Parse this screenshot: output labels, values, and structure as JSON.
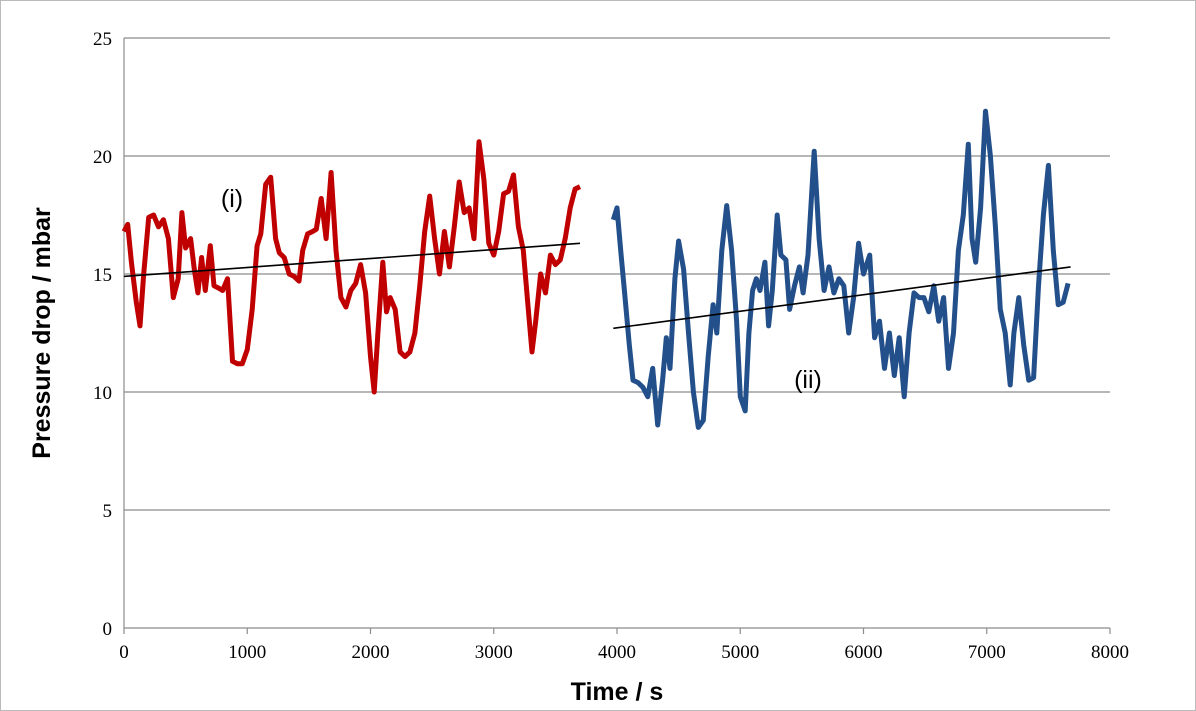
{
  "chart_data": {
    "type": "line",
    "xlabel": "Time / s",
    "ylabel": "Pressure drop / mbar",
    "xlim": [
      0,
      8000
    ],
    "xticks": [
      0,
      1000,
      2000,
      3000,
      4000,
      5000,
      6000,
      7000,
      8000
    ],
    "ylim": [
      0,
      25
    ],
    "yticks": [
      0,
      5,
      10,
      15,
      20,
      25
    ],
    "grid": true,
    "annotations": [
      "(i)",
      "(ii)"
    ],
    "series": [
      {
        "color": "#c00000",
        "x": [
          0,
          30,
          60,
          100,
          130,
          160,
          200,
          240,
          280,
          320,
          360,
          400,
          440,
          470,
          500,
          540,
          570,
          600,
          630,
          660,
          700,
          730,
          770,
          800,
          840,
          880,
          920,
          960,
          1000,
          1040,
          1080,
          1110,
          1150,
          1190,
          1230,
          1260,
          1300,
          1340,
          1380,
          1420,
          1450,
          1490,
          1530,
          1560,
          1600,
          1640,
          1680,
          1720,
          1760,
          1800,
          1840,
          1880,
          1920,
          1960,
          2000,
          2030,
          2060,
          2100,
          2130,
          2160,
          2200,
          2240,
          2280,
          2320,
          2360,
          2400,
          2440,
          2480,
          2520,
          2560,
          2600,
          2640,
          2680,
          2720,
          2760,
          2800,
          2840,
          2880,
          2920,
          2960,
          3000,
          3040,
          3080,
          3120,
          3160,
          3200,
          3240,
          3280,
          3310,
          3340,
          3380,
          3420,
          3460,
          3500,
          3540,
          3580,
          3620,
          3660,
          3700
        ],
        "values": [
          16.8,
          17.1,
          15.5,
          13.8,
          12.8,
          15,
          17.4,
          17.5,
          17.0,
          17.3,
          16.5,
          14.0,
          14.8,
          17.6,
          16.1,
          16.5,
          15.2,
          14.2,
          15.7,
          14.3,
          16.2,
          14.5,
          14.4,
          14.3,
          14.8,
          11.3,
          11.2,
          11.2,
          11.8,
          13.5,
          16.2,
          16.7,
          18.8,
          19.1,
          16.5,
          15.9,
          15.7,
          15.0,
          14.9,
          14.7,
          16.0,
          16.7,
          16.8,
          16.9,
          18.2,
          16.5,
          19.3,
          16.0,
          14.0,
          13.6,
          14.3,
          14.6,
          15.4,
          14.2,
          11.5,
          10.0,
          12.5,
          15.5,
          13.4,
          14.0,
          13.5,
          11.7,
          11.5,
          11.7,
          12.5,
          14.5,
          16.8,
          18.3,
          16.5,
          15.0,
          16.8,
          15.3,
          17.0,
          18.9,
          17.6,
          17.8,
          16.5,
          20.6,
          19.0,
          16.3,
          15.8,
          16.8,
          18.4,
          18.5,
          19.2,
          17.0,
          16.0,
          13.5,
          11.7,
          13.0,
          15.0,
          14.2,
          15.8,
          15.4,
          15.6,
          16.5,
          17.8,
          18.6,
          18.7
        ],
        "trend_x": [
          0,
          3700
        ],
        "trend_values": [
          14.9,
          16.3
        ]
      },
      {
        "color": "#23508a",
        "x": [
          3970,
          4000,
          4030,
          4060,
          4100,
          4130,
          4170,
          4210,
          4250,
          4290,
          4330,
          4370,
          4400,
          4430,
          4470,
          4500,
          4540,
          4580,
          4620,
          4660,
          4700,
          4740,
          4780,
          4810,
          4850,
          4890,
          4930,
          4970,
          5000,
          5040,
          5070,
          5100,
          5130,
          5160,
          5200,
          5230,
          5260,
          5300,
          5330,
          5370,
          5400,
          5440,
          5480,
          5510,
          5550,
          5600,
          5640,
          5680,
          5720,
          5760,
          5800,
          5840,
          5880,
          5920,
          5960,
          6000,
          6050,
          6090,
          6130,
          6170,
          6210,
          6250,
          6290,
          6330,
          6370,
          6410,
          6450,
          6490,
          6530,
          6570,
          6610,
          6650,
          6690,
          6730,
          6770,
          6810,
          6850,
          6880,
          6910,
          6950,
          6990,
          7030,
          7070,
          7110,
          7150,
          7190,
          7220,
          7260,
          7300,
          7340,
          7380,
          7420,
          7460,
          7500,
          7540,
          7580,
          7620,
          7660
        ],
        "values": [
          17.3,
          17.8,
          16.0,
          14.3,
          12.0,
          10.5,
          10.4,
          10.2,
          9.8,
          11.0,
          8.6,
          10.5,
          12.3,
          11.0,
          14.8,
          16.4,
          15.2,
          12.5,
          10.0,
          8.5,
          8.8,
          11.5,
          13.7,
          12.5,
          16.0,
          17.9,
          16.0,
          13.0,
          9.8,
          9.2,
          12.5,
          14.3,
          14.8,
          14.3,
          15.5,
          12.8,
          14.3,
          17.5,
          15.8,
          15.6,
          13.5,
          14.5,
          15.3,
          14.2,
          15.8,
          20.2,
          16.5,
          14.3,
          15.3,
          14.2,
          14.8,
          14.5,
          12.5,
          14.0,
          16.3,
          15.0,
          15.8,
          12.3,
          13.0,
          11.0,
          12.5,
          10.7,
          12.3,
          9.8,
          12.5,
          14.2,
          14.0,
          14.0,
          13.4,
          14.5,
          13.0,
          14.0,
          11.0,
          12.5,
          16.0,
          17.5,
          20.5,
          16.5,
          15.5,
          17.8,
          21.9,
          20.0,
          17.0,
          13.5,
          12.5,
          10.3,
          12.5,
          14.0,
          12.0,
          10.5,
          10.6,
          14.5,
          17.5,
          19.6,
          16.0,
          13.7,
          13.8,
          14.6
        ],
        "trend_x": [
          3970,
          7680
        ],
        "trend_values": [
          12.7,
          15.3
        ]
      }
    ]
  }
}
